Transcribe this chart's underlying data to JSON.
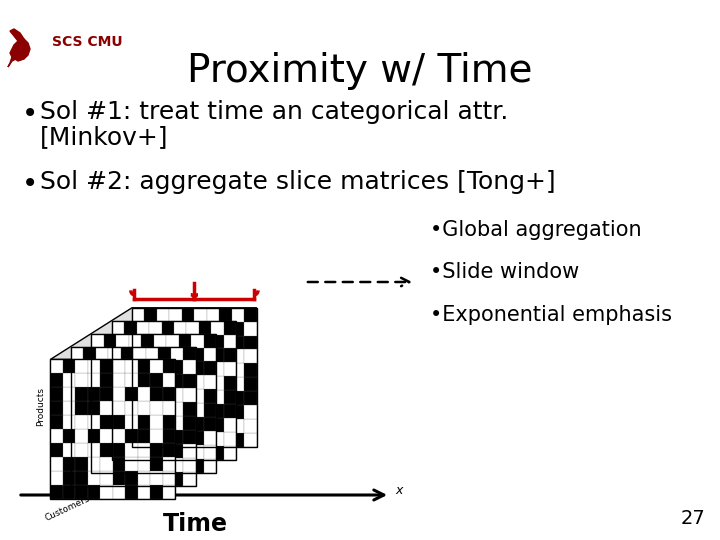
{
  "title": "Proximity w/ Time",
  "title_fontsize": 28,
  "title_color": "#000000",
  "background_color": "#ffffff",
  "bullet1_line1": "Sol #1: treat time an categorical attr.",
  "bullet1_line2": "[Minkov+]",
  "bullet2": "Sol #2: aggregate slice matrices [Tong+]",
  "bullet_fontsize": 18,
  "sub_bullets": [
    "•Global aggregation",
    "•Slide window",
    "•Exponential emphasis"
  ],
  "sub_bullet_fontsize": 15,
  "time_label": "Time",
  "time_fontsize": 17,
  "page_number": "27",
  "logo_text": "SCS CMU",
  "logo_color": "#8B0000",
  "logo_fontsize": 10,
  "n_slices": 5,
  "n_cells": 10,
  "red_brace_color": "#cc0000",
  "arrow_color": "#000000"
}
